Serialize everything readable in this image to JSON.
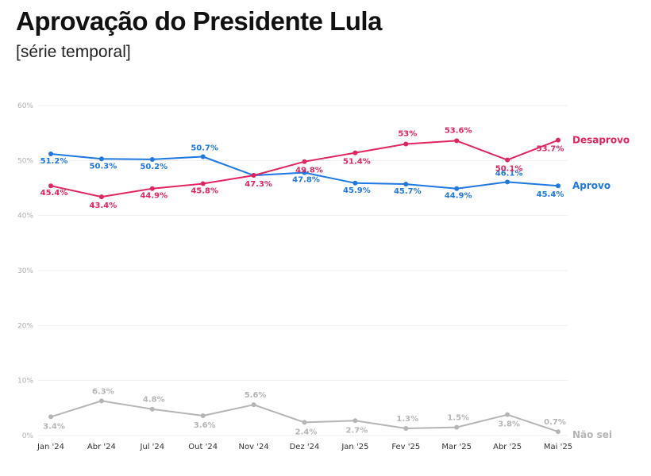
{
  "title": "Aprovação do Presidente Lula",
  "subtitle": "[série temporal]",
  "colors": {
    "aprovo": "#1f77e0",
    "desaprovo": "#e0245e",
    "nao_sei": "#b5b5b5"
  },
  "chart_data": {
    "type": "line",
    "title": "Aprovação do Presidente Lula",
    "subtitle": "[série temporal]",
    "x": [
      "Jan '24",
      "Abr '24",
      "Jul '24",
      "Out '24",
      "Nov '24",
      "Dez '24",
      "Jan '25",
      "Fev '25",
      "Mar '25",
      "Abr '25",
      "Mai '25"
    ],
    "y_ticks": [
      "0%",
      "10%",
      "20%",
      "30%",
      "40%",
      "50%",
      "60%"
    ],
    "ylim": [
      0,
      60
    ],
    "grid": true,
    "legend": "inline labels at right end of each line",
    "series": [
      {
        "name": "Aprovo",
        "color": "#1f77e0",
        "values": [
          51.2,
          50.3,
          50.2,
          50.7,
          47.3,
          47.8,
          45.9,
          45.7,
          44.9,
          46.1,
          45.4
        ],
        "labels": [
          "51.2%",
          "50.3%",
          "50.2%",
          "50.7%",
          "",
          "47.8%",
          "45.9%",
          "45.7%",
          "44.9%",
          "46.1%",
          "45.4%"
        ]
      },
      {
        "name": "Desaprovo",
        "color": "#e0245e",
        "values": [
          45.4,
          43.4,
          44.9,
          45.8,
          47.3,
          49.8,
          51.4,
          53,
          53.6,
          50.1,
          53.7
        ],
        "labels": [
          "45.4%",
          "43.4%",
          "44.9%",
          "45.8%",
          "47.3%",
          "49.8%",
          "51.4%",
          "53%",
          "53.6%",
          "50.1%",
          "53.7%"
        ]
      },
      {
        "name": "Não sei",
        "color": "#b5b5b5",
        "values": [
          3.4,
          6.3,
          4.8,
          3.6,
          5.6,
          2.4,
          2.7,
          1.3,
          1.5,
          3.8,
          0.7
        ],
        "labels": [
          "3.4%",
          "6.3%",
          "4.8%",
          "3.6%",
          "5.6%",
          "2.4%",
          "2.7%",
          "1.3%",
          "1.5%",
          "3.8%",
          "0.7%"
        ]
      }
    ]
  }
}
